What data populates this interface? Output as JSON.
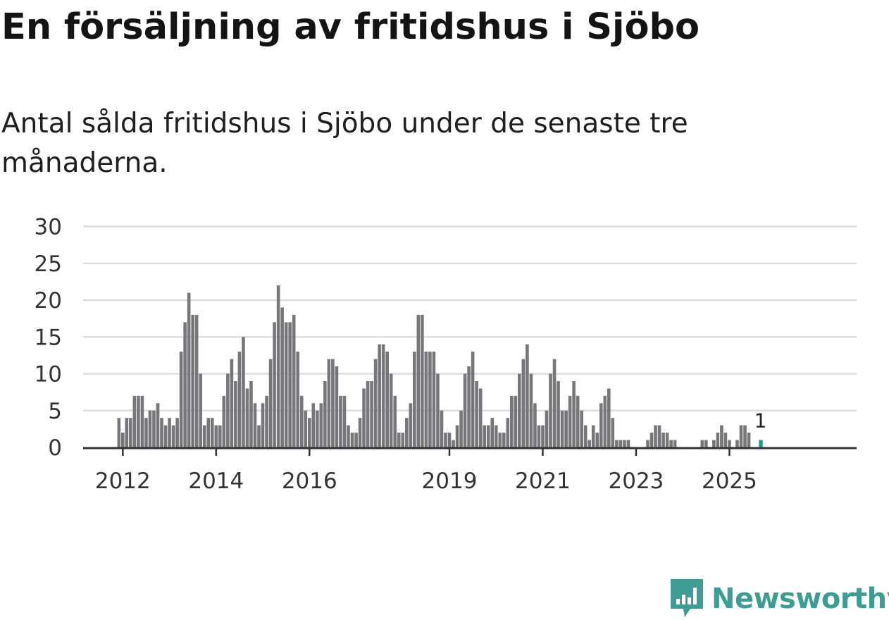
{
  "header": {
    "title": "En försäljning av fritidshus i Sjöbo",
    "subtitle": "Antal sålda fritidshus i Sjöbo under de senaste tre månaderna."
  },
  "branding": {
    "logo_text": "Newsworthy",
    "logo_color": "#3d9d95"
  },
  "colors": {
    "bar": "#77767a",
    "highlight": "#1a9e8a",
    "grid": "#dddddd",
    "axis": "#333333"
  },
  "chart_data": {
    "type": "bar",
    "x_start": "2011-12",
    "x_end": "2025-08",
    "values": [
      4,
      2,
      4,
      4,
      7,
      7,
      7,
      4,
      5,
      5,
      6,
      4,
      3,
      4,
      3,
      4,
      13,
      17,
      21,
      18,
      18,
      10,
      3,
      4,
      4,
      3,
      3,
      7,
      10,
      12,
      9,
      13,
      15,
      8,
      9,
      6,
      3,
      6,
      7,
      12,
      17,
      22,
      19,
      17,
      17,
      18,
      13,
      7,
      5,
      4,
      6,
      5,
      6,
      9,
      12,
      12,
      11,
      7,
      7,
      3,
      2,
      2,
      4,
      8,
      9,
      9,
      12,
      14,
      14,
      13,
      10,
      7,
      2,
      2,
      4,
      6,
      13,
      18,
      18,
      13,
      13,
      13,
      10,
      5,
      2,
      2,
      1,
      3,
      5,
      10,
      11,
      13,
      9,
      8,
      3,
      3,
      4,
      3,
      2,
      2,
      4,
      7,
      7,
      10,
      12,
      14,
      10,
      6,
      3,
      3,
      5,
      10,
      12,
      9,
      5,
      5,
      7,
      9,
      7,
      5,
      3,
      1,
      3,
      2,
      6,
      7,
      8,
      4,
      1,
      1,
      1,
      1,
      0,
      0,
      0,
      0,
      1,
      2,
      3,
      3,
      2,
      2,
      1,
      1,
      0,
      0,
      0,
      0,
      0,
      0,
      1,
      1,
      0,
      1,
      2,
      3,
      2,
      1,
      0,
      1,
      3,
      3,
      2,
      0,
      0,
      1
    ],
    "highlight_last": true,
    "highlight_label": "1",
    "x_tick_labels": [
      "2012",
      "2014",
      "2016",
      "2019",
      "2021",
      "2023",
      "2025"
    ],
    "y_ticks": [
      "0",
      "5",
      "10",
      "15",
      "20",
      "25",
      "30"
    ],
    "ylim": [
      0,
      30
    ],
    "grid": true,
    "legend": "none"
  }
}
